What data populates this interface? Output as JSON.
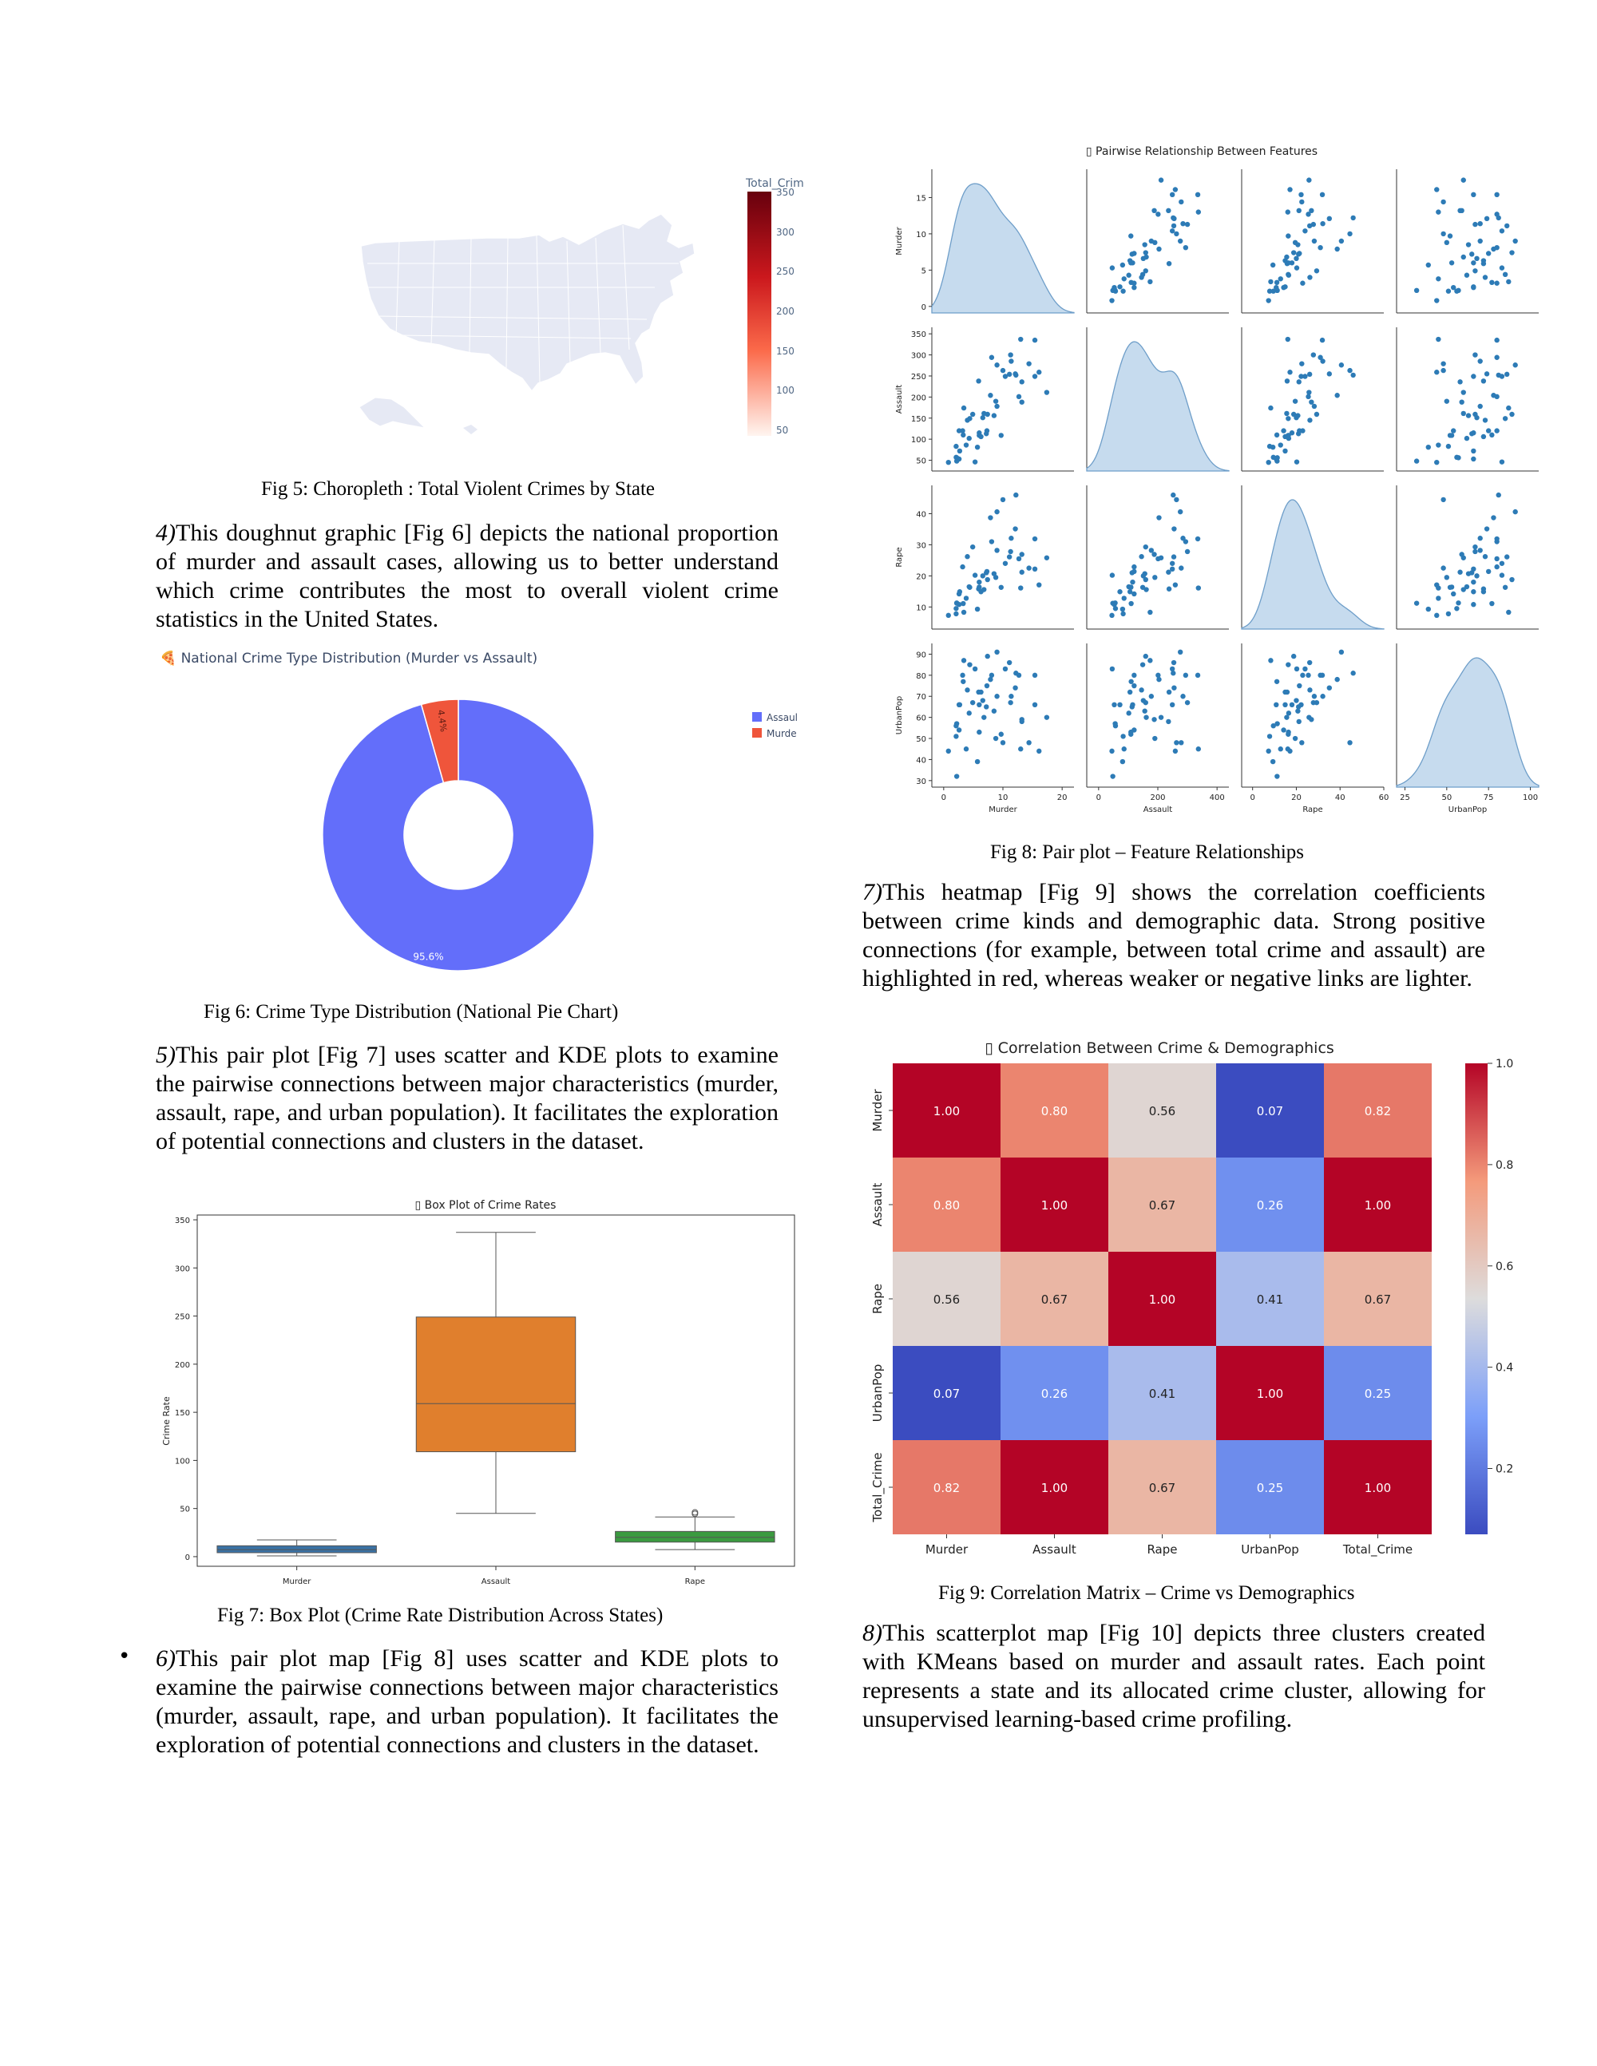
{
  "fig5": {
    "caption": "Fig 5: Choropleth : Total Violent Crimes by State",
    "colorbar_title": "Total_Crim",
    "ticks": [
      "350",
      "300",
      "250",
      "200",
      "150",
      "100",
      "50"
    ]
  },
  "para4": {
    "num": "4)",
    "text": "This doughnut graphic [Fig 6] depicts the national proportion of murder and assault cases, allowing us to better understand which crime contributes the most to overall violent crime statistics in the United States."
  },
  "fig6": {
    "title": "🍕 National Crime Type Distribution (Murder vs Assault)",
    "caption": "Fig 6: Crime Type Distribution (National Pie Chart)",
    "colors": {
      "assault": "#636efa",
      "murder": "#ef553b"
    }
  },
  "para5": {
    "num": "5)",
    "text": "This pair plot [Fig 7] uses scatter and KDE plots to examine the pairwise connections between major characteristics (murder, assault, rape, and urban population). It facilitates the exploration of potential connections and clusters in the dataset."
  },
  "fig7": {
    "title": "▯ Box Plot of Crime Rates",
    "ylabel": "Crime Rate",
    "caption": "Fig 7: Box Plot (Crime Rate Distribution Across States)"
  },
  "para6": {
    "bullet": "•",
    "num": "6)",
    "text": "This pair plot map [Fig 8] uses scatter and KDE plots to examine the pairwise connections between major characteristics (murder, assault, rape, and urban population). It facilitates the exploration of potential connections and clusters in the dataset."
  },
  "fig8": {
    "title": "▯ Pairwise Relationship Between Features",
    "caption": "Fig 8: Pair plot – Feature Relationships"
  },
  "para7": {
    "num": "7)",
    "text": "This heatmap [Fig 9] shows the correlation coefficients between crime kinds and demographic data. Strong positive connections (for example, between total crime and assault) are highlighted in red, whereas weaker or negative links are lighter."
  },
  "fig9": {
    "title": "▯ Correlation Between Crime & Demographics",
    "caption": "Fig 9: Correlation Matrix – Crime vs Demographics"
  },
  "para8": {
    "num": "8)",
    "text": "This scatterplot map [Fig 10]  depicts three clusters created with KMeans based on murder and assault rates. Each point represents a state and its allocated crime cluster, allowing for unsupervised learning-based crime profiling."
  },
  "chart_data": [
    {
      "type": "pie",
      "title": "National Crime Type Distribution (Murder vs Assault)",
      "labels": [
        "Assaul",
        "Murde"
      ],
      "values": [
        95.6,
        4.4
      ],
      "slice_labels": [
        "95.6%",
        "4.4%"
      ],
      "hole": true
    },
    {
      "type": "box",
      "title": "Box Plot of Crime Rates",
      "categories": [
        "Murder",
        "Assault",
        "Rape"
      ],
      "colors": [
        "#3a72a5",
        "#e07f2d",
        "#3b9a40"
      ],
      "boxes": [
        {
          "min": 0.8,
          "q1": 4.1,
          "median": 7.2,
          "q3": 11.3,
          "max": 17.4,
          "outliers": []
        },
        {
          "min": 45,
          "q1": 109,
          "median": 159,
          "q3": 249,
          "max": 337,
          "outliers": []
        },
        {
          "min": 7.3,
          "q1": 15.1,
          "median": 20.1,
          "q3": 26.2,
          "max": 41.2,
          "outliers": [
            44.5,
            46.0
          ]
        }
      ],
      "ylabel": "Crime Rate",
      "ylim": [
        -10,
        355
      ],
      "yticks": [
        0,
        50,
        100,
        150,
        200,
        250,
        300,
        350
      ]
    },
    {
      "type": "heatmap",
      "title": "Correlation Between Crime & Demographics",
      "rows": [
        "Murder",
        "Assault",
        "Rape",
        "UrbanPop",
        "Total_Crime"
      ],
      "cols": [
        "Murder",
        "Assault",
        "Rape",
        "UrbanPop",
        "Total_Crime"
      ],
      "values": [
        [
          1.0,
          0.8,
          0.56,
          0.07,
          0.82
        ],
        [
          0.8,
          1.0,
          0.67,
          0.26,
          1.0
        ],
        [
          0.56,
          0.67,
          1.0,
          0.41,
          0.67
        ],
        [
          0.07,
          0.26,
          0.41,
          1.0,
          0.25
        ],
        [
          0.82,
          1.0,
          0.67,
          0.25,
          1.0
        ]
      ],
      "colorbar_ticks": [
        "1.0",
        "0.8",
        "0.6",
        "0.4",
        "0.2"
      ],
      "colorbar_tick_values": [
        1.0,
        0.8,
        0.6,
        0.4,
        0.2
      ],
      "vrange": [
        0.07,
        1.0
      ]
    },
    {
      "type": "scatter",
      "title": "Pairwise Relationship Between Features",
      "variables": [
        "Murder",
        "Assault",
        "Rape",
        "UrbanPop"
      ],
      "ranges": {
        "Murder": [
          -2,
          22
        ],
        "Assault": [
          -40,
          440
        ],
        "Rape": [
          -5,
          60
        ],
        "UrbanPop": [
          20,
          105
        ]
      },
      "tick_labels": {
        "x": {
          "Murder": [
            "0",
            "10",
            "20"
          ],
          "Assault": [
            "0",
            "200",
            "400"
          ],
          "Rape": [
            "0",
            "20",
            "40",
            "60"
          ],
          "UrbanPop": [
            "25",
            "50",
            "75",
            "100"
          ]
        },
        "y": {
          "Murder": [
            "15",
            "10",
            "5",
            "0"
          ],
          "Assault": [
            "350",
            "300",
            "250",
            "200",
            "150",
            "100",
            "50"
          ],
          "Rape": [
            "40",
            "30",
            "20",
            "10"
          ],
          "UrbanPop": [
            "90",
            "80",
            "70",
            "60",
            "50",
            "40",
            "30"
          ]
        }
      },
      "x_tick_values": {
        "Murder": [
          0,
          10,
          20
        ],
        "Assault": [
          0,
          200,
          400
        ],
        "Rape": [
          0,
          20,
          40,
          60
        ],
        "UrbanPop": [
          25,
          50,
          75,
          100
        ]
      },
      "y_tick_values": {
        "Murder": [
          15,
          10,
          5,
          0
        ],
        "Assault": [
          350,
          300,
          250,
          200,
          150,
          100,
          50
        ],
        "Rape": [
          40,
          30,
          20,
          10
        ],
        "UrbanPop": [
          90,
          80,
          70,
          60,
          50,
          40,
          30
        ]
      },
      "plot_ranges": {
        "Murder": [
          0,
          18
        ],
        "Assault": [
          40,
          350
        ],
        "Rape": [
          5,
          47
        ],
        "UrbanPop": [
          30,
          92
        ]
      },
      "points": [
        [
          13.2,
          236,
          21.2,
          58
        ],
        [
          10.0,
          263,
          44.5,
          48
        ],
        [
          8.1,
          294,
          31.0,
          80
        ],
        [
          8.8,
          190,
          19.5,
          50
        ],
        [
          9.0,
          276,
          40.6,
          91
        ],
        [
          7.9,
          204,
          38.7,
          78
        ],
        [
          3.3,
          110,
          11.1,
          77
        ],
        [
          5.9,
          238,
          15.8,
          72
        ],
        [
          15.4,
          335,
          31.9,
          80
        ],
        [
          17.4,
          211,
          25.8,
          60
        ],
        [
          5.3,
          46,
          20.2,
          83
        ],
        [
          2.6,
          120,
          14.2,
          54
        ],
        [
          10.4,
          249,
          24.0,
          83
        ],
        [
          7.2,
          113,
          21.0,
          65
        ],
        [
          2.2,
          56,
          11.3,
          57
        ],
        [
          6.0,
          115,
          18.0,
          66
        ],
        [
          9.7,
          109,
          16.3,
          52
        ],
        [
          15.4,
          249,
          22.2,
          66
        ],
        [
          2.1,
          83,
          7.8,
          51
        ],
        [
          11.3,
          300,
          27.8,
          67
        ],
        [
          4.4,
          149,
          16.3,
          85
        ],
        [
          12.1,
          255,
          35.1,
          74
        ],
        [
          2.7,
          72,
          14.9,
          66
        ],
        [
          16.1,
          259,
          17.1,
          44
        ],
        [
          9.0,
          178,
          28.2,
          70
        ],
        [
          6.0,
          109,
          16.4,
          53
        ],
        [
          4.3,
          102,
          16.5,
          62
        ],
        [
          12.2,
          252,
          46.0,
          81
        ],
        [
          2.1,
          57,
          9.5,
          56
        ],
        [
          7.4,
          159,
          18.8,
          89
        ],
        [
          11.4,
          285,
          32.1,
          70
        ],
        [
          11.1,
          254,
          26.1,
          86
        ],
        [
          13.0,
          337,
          16.1,
          45
        ],
        [
          0.8,
          45,
          7.3,
          44
        ],
        [
          7.3,
          120,
          21.4,
          75
        ],
        [
          6.6,
          151,
          20.0,
          68
        ],
        [
          4.9,
          159,
          29.3,
          67
        ],
        [
          6.3,
          106,
          14.9,
          72
        ],
        [
          3.4,
          174,
          8.3,
          87
        ],
        [
          14.4,
          279,
          22.5,
          48
        ],
        [
          3.8,
          86,
          12.8,
          45
        ],
        [
          13.2,
          188,
          26.9,
          59
        ],
        [
          12.7,
          201,
          25.5,
          80
        ],
        [
          3.2,
          120,
          22.9,
          80
        ],
        [
          2.2,
          48,
          11.2,
          32
        ],
        [
          8.5,
          156,
          20.7,
          63
        ],
        [
          4.0,
          145,
          26.2,
          73
        ],
        [
          5.7,
          81,
          9.3,
          39
        ],
        [
          2.6,
          53,
          10.8,
          66
        ],
        [
          6.8,
          161,
          15.6,
          60
        ]
      ]
    }
  ]
}
